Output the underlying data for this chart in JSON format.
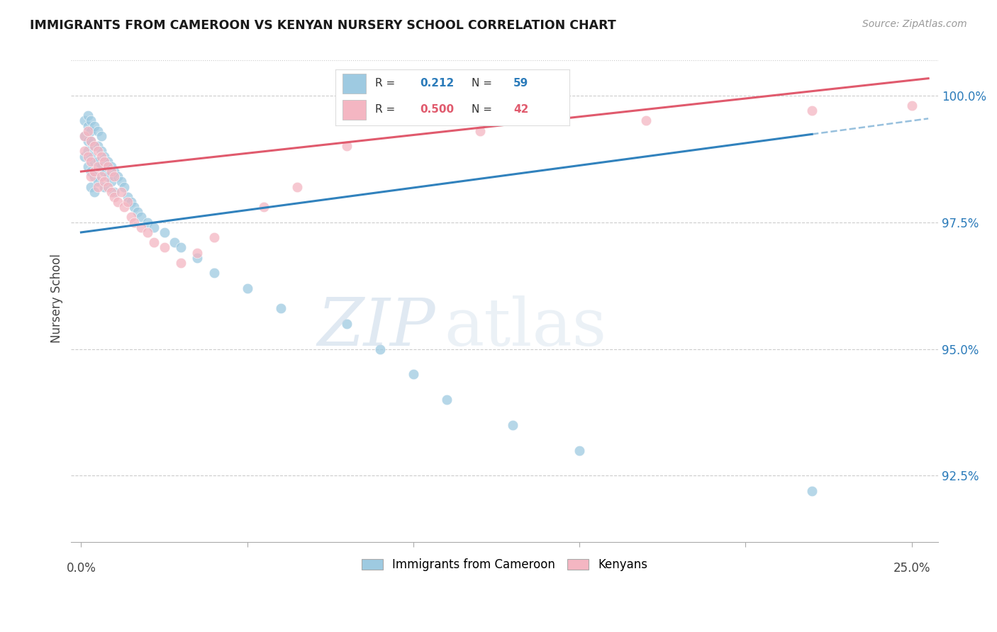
{
  "title": "IMMIGRANTS FROM CAMEROON VS KENYAN NURSERY SCHOOL CORRELATION CHART",
  "source": "Source: ZipAtlas.com",
  "ylabel": "Nursery School",
  "y_ticks": [
    92.5,
    95.0,
    97.5,
    100.0
  ],
  "y_min": 91.2,
  "y_max": 100.8,
  "x_min": -0.003,
  "x_max": 0.258,
  "blue_R": 0.212,
  "blue_N": 59,
  "pink_R": 0.5,
  "pink_N": 42,
  "blue_color": "#9ecae1",
  "pink_color": "#f4b6c2",
  "blue_line_color": "#3182bd",
  "pink_line_color": "#e05a6d",
  "watermark_zip": "ZIP",
  "watermark_atlas": "atlas",
  "blue_points_x": [
    0.001,
    0.001,
    0.001,
    0.002,
    0.002,
    0.002,
    0.002,
    0.002,
    0.003,
    0.003,
    0.003,
    0.003,
    0.003,
    0.003,
    0.004,
    0.004,
    0.004,
    0.004,
    0.004,
    0.005,
    0.005,
    0.005,
    0.005,
    0.006,
    0.006,
    0.006,
    0.007,
    0.007,
    0.007,
    0.008,
    0.008,
    0.009,
    0.009,
    0.01,
    0.01,
    0.011,
    0.012,
    0.013,
    0.014,
    0.015,
    0.016,
    0.017,
    0.018,
    0.02,
    0.022,
    0.025,
    0.028,
    0.03,
    0.035,
    0.04,
    0.05,
    0.06,
    0.08,
    0.09,
    0.1,
    0.11,
    0.13,
    0.15,
    0.22
  ],
  "blue_points_y": [
    99.5,
    99.2,
    98.8,
    99.6,
    99.4,
    99.1,
    98.9,
    98.6,
    99.5,
    99.3,
    99.1,
    98.8,
    98.5,
    98.2,
    99.4,
    99.0,
    98.7,
    98.4,
    98.1,
    99.3,
    99.0,
    98.7,
    98.3,
    99.2,
    98.9,
    98.6,
    98.8,
    98.5,
    98.2,
    98.7,
    98.4,
    98.6,
    98.3,
    98.5,
    98.1,
    98.4,
    98.3,
    98.2,
    98.0,
    97.9,
    97.8,
    97.7,
    97.6,
    97.5,
    97.4,
    97.3,
    97.1,
    97.0,
    96.8,
    96.5,
    96.2,
    95.8,
    95.5,
    95.0,
    94.5,
    94.0,
    93.5,
    93.0,
    92.2
  ],
  "pink_points_x": [
    0.001,
    0.001,
    0.002,
    0.002,
    0.003,
    0.003,
    0.003,
    0.004,
    0.004,
    0.005,
    0.005,
    0.005,
    0.006,
    0.006,
    0.007,
    0.007,
    0.008,
    0.008,
    0.009,
    0.009,
    0.01,
    0.01,
    0.011,
    0.012,
    0.013,
    0.014,
    0.015,
    0.016,
    0.018,
    0.02,
    0.022,
    0.025,
    0.03,
    0.035,
    0.04,
    0.055,
    0.065,
    0.08,
    0.12,
    0.17,
    0.22,
    0.25
  ],
  "pink_points_y": [
    99.2,
    98.9,
    99.3,
    98.8,
    99.1,
    98.7,
    98.4,
    99.0,
    98.5,
    98.9,
    98.6,
    98.2,
    98.8,
    98.4,
    98.7,
    98.3,
    98.6,
    98.2,
    98.5,
    98.1,
    98.4,
    98.0,
    97.9,
    98.1,
    97.8,
    97.9,
    97.6,
    97.5,
    97.4,
    97.3,
    97.1,
    97.0,
    96.7,
    96.9,
    97.2,
    97.8,
    98.2,
    99.0,
    99.3,
    99.5,
    99.7,
    99.8
  ]
}
